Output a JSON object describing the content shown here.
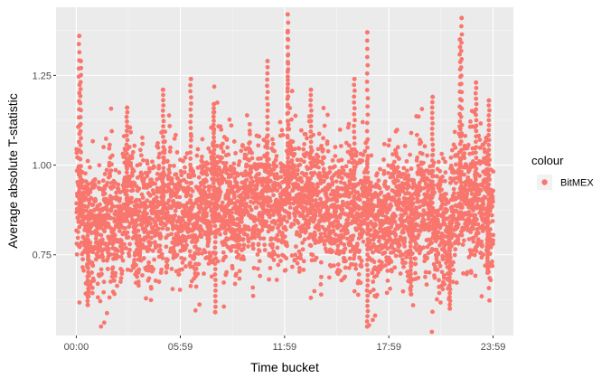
{
  "chart_data": {
    "type": "scatter",
    "title": "",
    "xlabel": "Time bucket",
    "ylabel": "Average absolute T-statistic",
    "x_tick_labels": [
      "00:00",
      "05:59",
      "11:59",
      "17:59",
      "23:59"
    ],
    "x_tick_values": [
      0,
      359,
      719,
      1079,
      1439
    ],
    "xlim": [
      -70,
      1509
    ],
    "y_ticks": [
      0.75,
      1.0,
      1.25
    ],
    "y_tick_labels": [
      "0.75",
      "1.00",
      "1.25"
    ],
    "ylim": [
      0.525,
      1.44
    ],
    "grid": true,
    "legend": {
      "title": "colour",
      "position": "right",
      "entries": [
        {
          "label": "BitMEX",
          "color": "#F8766D"
        }
      ]
    },
    "series": [
      {
        "name": "BitMEX",
        "color": "#F8766D",
        "baseline_profile": [
          [
            0,
            0.86
          ],
          [
            60,
            0.86
          ],
          [
            120,
            0.84
          ],
          [
            180,
            0.88
          ],
          [
            240,
            0.86
          ],
          [
            300,
            0.89
          ],
          [
            360,
            0.87
          ],
          [
            420,
            0.86
          ],
          [
            480,
            0.92
          ],
          [
            540,
            0.9
          ],
          [
            600,
            0.9
          ],
          [
            660,
            0.91
          ],
          [
            720,
            0.92
          ],
          [
            780,
            0.9
          ],
          [
            840,
            0.88
          ],
          [
            900,
            0.87
          ],
          [
            960,
            0.88
          ],
          [
            1020,
            0.86
          ],
          [
            1080,
            0.86
          ],
          [
            1140,
            0.89
          ],
          [
            1200,
            0.87
          ],
          [
            1260,
            0.86
          ],
          [
            1300,
            0.83
          ],
          [
            1340,
            0.93
          ],
          [
            1380,
            0.9
          ],
          [
            1439,
            0.87
          ]
        ],
        "extremes": [
          {
            "x": 10,
            "y": 1.36
          },
          {
            "x": 15,
            "y": 1.29
          },
          {
            "x": 40,
            "y": 0.61
          },
          {
            "x": 175,
            "y": 1.16
          },
          {
            "x": 300,
            "y": 1.21
          },
          {
            "x": 395,
            "y": 1.24
          },
          {
            "x": 475,
            "y": 1.17
          },
          {
            "x": 480,
            "y": 0.59
          },
          {
            "x": 660,
            "y": 1.29
          },
          {
            "x": 730,
            "y": 1.42
          },
          {
            "x": 730,
            "y": 1.37
          },
          {
            "x": 810,
            "y": 1.21
          },
          {
            "x": 960,
            "y": 1.24
          },
          {
            "x": 1005,
            "y": 1.37
          },
          {
            "x": 1005,
            "y": 0.55
          },
          {
            "x": 1155,
            "y": 0.64
          },
          {
            "x": 1230,
            "y": 1.19
          },
          {
            "x": 1290,
            "y": 0.6
          },
          {
            "x": 1325,
            "y": 1.35
          },
          {
            "x": 1330,
            "y": 1.41
          },
          {
            "x": 1380,
            "y": 1.23
          },
          {
            "x": 1420,
            "y": 0.7
          },
          {
            "x": 1425,
            "y": 1.18
          }
        ]
      }
    ]
  }
}
